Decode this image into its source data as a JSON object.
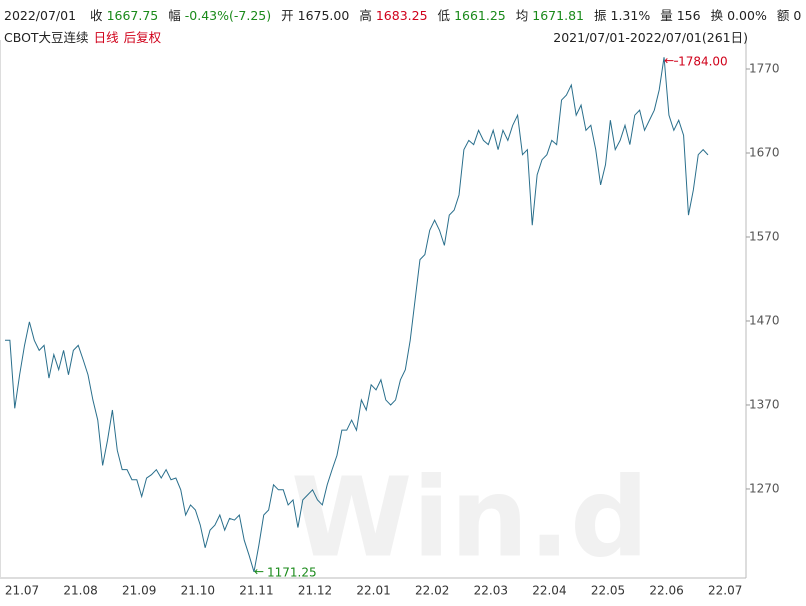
{
  "chart_data": {
    "type": "line",
    "title": "CBOT大豆连续",
    "tags": [
      "日线",
      "后复权"
    ],
    "subtitle": "2021/07/01-2022/07/01(261日)",
    "header": [
      {
        "label": "2022/07/01",
        "value": "",
        "color": "#222222"
      },
      {
        "label": "收",
        "value": "1667.75",
        "color": "#1a8a1a"
      },
      {
        "label": "幅",
        "value": "-0.43%(-7.25)",
        "color": "#1a8a1a"
      },
      {
        "label": "开",
        "value": "1675.00",
        "color": "#222222"
      },
      {
        "label": "高",
        "value": "1683.25",
        "color": "#d0021b"
      },
      {
        "label": "低",
        "value": "1661.25",
        "color": "#1a8a1a"
      },
      {
        "label": "均",
        "value": "1671.81",
        "color": "#1a8a1a"
      },
      {
        "label": "振",
        "value": "1.31%",
        "color": "#222222"
      },
      {
        "label": "量",
        "value": "156",
        "color": "#222222"
      },
      {
        "label": "换",
        "value": "0.00%",
        "color": "#222222"
      },
      {
        "label": "额",
        "value": "0",
        "color": "#222222"
      }
    ],
    "watermark": "Win.d",
    "xticks": [
      "21.07",
      "21.08",
      "21.09",
      "21.10",
      "21.11",
      "21.12",
      "22.01",
      "22.02",
      "22.03",
      "22.04",
      "22.05",
      "22.06",
      "22.07"
    ],
    "ylim": [
      1164,
      1795
    ],
    "yticks": [
      1270,
      1370,
      1470,
      1570,
      1670,
      1770
    ],
    "grid": false,
    "max_label": "1784.00",
    "max_color": "#d0021b",
    "min_label": "1171.25",
    "min_color": "#1a8a1a",
    "series": [
      {
        "color": "#2a6f8c",
        "values": [
          1447,
          1447,
          1366,
          1406,
          1441,
          1469,
          1447,
          1435,
          1441,
          1402,
          1430,
          1412,
          1435,
          1406,
          1435,
          1441,
          1424,
          1406,
          1376,
          1352,
          1298,
          1328,
          1364,
          1316,
          1293,
          1293,
          1281,
          1281,
          1261,
          1283,
          1287,
          1293,
          1283,
          1293,
          1281,
          1283,
          1269,
          1239,
          1251,
          1245,
          1227,
          1200,
          1221,
          1227,
          1239,
          1221,
          1235,
          1233,
          1239,
          1209,
          1191,
          1171.25,
          1203,
          1239,
          1245,
          1275,
          1269,
          1269,
          1251,
          1257,
          1224,
          1257,
          1263,
          1269,
          1257,
          1251,
          1275,
          1293,
          1310,
          1340,
          1340,
          1352,
          1340,
          1376,
          1364,
          1394,
          1388,
          1400,
          1376,
          1370,
          1376,
          1400,
          1412,
          1447,
          1495,
          1543,
          1549,
          1578,
          1590,
          1578,
          1560,
          1596,
          1602,
          1620,
          1674,
          1685,
          1680,
          1697,
          1685,
          1680,
          1697,
          1674,
          1697,
          1685,
          1703,
          1715,
          1668,
          1674,
          1584,
          1644,
          1662,
          1668,
          1685,
          1680,
          1733,
          1739,
          1751,
          1715,
          1727,
          1697,
          1703,
          1674,
          1632,
          1656,
          1709,
          1674,
          1685,
          1703,
          1680,
          1715,
          1721,
          1697,
          1709,
          1721,
          1745,
          1784,
          1715,
          1697,
          1709,
          1691,
          1596,
          1626,
          1668,
          1674,
          1667.75
        ]
      }
    ]
  }
}
